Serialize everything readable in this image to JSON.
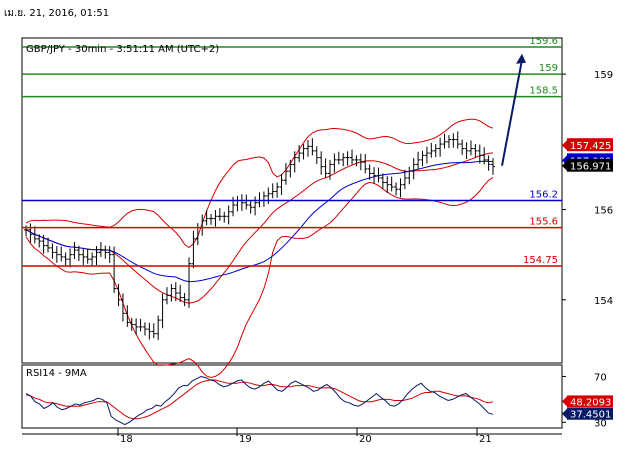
{
  "header": {
    "timestamp": "เม.ย. 21, 2016, 01:51",
    "title": "GBP/JPY - 30min - 3:51:11 AM (UTC+2)",
    "rsi_title": "RSI14 - 9MA"
  },
  "colors": {
    "green": "#1f8a1f",
    "blue": "#0000cc",
    "red": "#d40000",
    "navy": "#0a1a66",
    "black": "#000000"
  },
  "chart_data": [
    {
      "type": "candlestick",
      "pair": "GBP/JPY",
      "timeframe": "30min",
      "ylim": [
        152.6,
        159.8
      ],
      "yticks": [
        154,
        156,
        159
      ],
      "x_categories": [
        "18",
        "19",
        "20",
        "21"
      ],
      "levels": [
        {
          "label": "159.6",
          "value": 159.6,
          "color": "#1f8a1f"
        },
        {
          "label": "159",
          "value": 159.0,
          "color": "#1f8a1f"
        },
        {
          "label": "158.5",
          "value": 158.5,
          "color": "#1f8a1f"
        },
        {
          "label": "156.2",
          "value": 156.2,
          "color": "#0000cc"
        },
        {
          "label": "155.6",
          "value": 155.6,
          "color": "#d40000"
        },
        {
          "label": "154.75",
          "value": 154.75,
          "color": "#d40000"
        }
      ],
      "badges": [
        {
          "label": "157.425",
          "value": 157.425,
          "color": "#d40000"
        },
        {
          "label": "157.089",
          "value": 157.089,
          "color": "#0000cc"
        },
        {
          "label": "156.971",
          "value": 156.971,
          "color": "#000000"
        }
      ],
      "close_prices": [
        155.55,
        155.45,
        155.35,
        155.3,
        155.2,
        155.15,
        155.05,
        155.0,
        154.95,
        154.9,
        155.0,
        155.1,
        155.0,
        154.95,
        154.9,
        154.95,
        155.05,
        155.1,
        155.05,
        155.0,
        154.25,
        154.0,
        153.7,
        153.5,
        153.45,
        153.4,
        153.4,
        153.35,
        153.3,
        153.25,
        153.55,
        154.0,
        154.1,
        154.25,
        154.15,
        154.05,
        154.0,
        154.8,
        155.35,
        155.6,
        155.75,
        155.8,
        155.8,
        155.85,
        155.85,
        155.85,
        155.95,
        156.1,
        156.2,
        156.15,
        156.1,
        156.05,
        156.15,
        156.2,
        156.3,
        156.35,
        156.4,
        156.5,
        156.65,
        156.85,
        157.0,
        157.15,
        157.25,
        157.35,
        157.4,
        157.3,
        157.15,
        156.95,
        156.8,
        157.0,
        157.1,
        157.1,
        157.15,
        157.15,
        157.1,
        157.1,
        157.05,
        156.9,
        156.8,
        156.75,
        156.7,
        156.6,
        156.55,
        156.5,
        156.45,
        156.55,
        156.7,
        156.85,
        157.0,
        157.1,
        157.2,
        157.25,
        157.3,
        157.35,
        157.45,
        157.5,
        157.55,
        157.55,
        157.45,
        157.35,
        157.3,
        157.35,
        157.3,
        157.2,
        157.1,
        157.0,
        156.95
      ],
      "forecast_arrow": {
        "from": 156.971,
        "to": 159.45
      }
    },
    {
      "type": "line",
      "indicator": "RSI14 - 9MA",
      "ylim": [
        25,
        80
      ],
      "yticks": [
        70,
        30
      ],
      "series": [
        {
          "values": [
            55,
            53,
            48,
            46,
            42,
            44,
            47,
            43,
            41,
            42,
            44,
            46,
            45,
            47,
            48,
            49,
            51,
            50,
            47,
            35,
            32,
            30,
            28,
            30,
            33,
            36,
            38,
            41,
            42,
            45,
            44,
            48,
            51,
            55,
            60,
            62,
            62,
            66,
            68,
            70,
            69,
            67,
            66,
            63,
            61,
            62,
            64,
            66,
            67,
            63,
            60,
            59,
            61,
            64,
            66,
            62,
            58,
            57,
            60,
            64,
            66,
            64,
            62,
            60,
            57,
            58,
            61,
            63,
            60,
            56,
            51,
            48,
            47,
            45,
            44,
            46,
            49,
            52,
            55,
            52,
            49,
            45,
            44,
            46,
            50,
            55,
            59,
            62,
            64,
            60,
            57,
            56,
            53,
            51,
            49,
            50,
            52,
            54,
            55,
            52,
            49,
            46,
            42,
            38,
            37
          ]
        },
        {
          "values": [
            54,
            53,
            51,
            50,
            48,
            47,
            47,
            46,
            45,
            44,
            44,
            44,
            44,
            45,
            46,
            47,
            48,
            48,
            48,
            45,
            42,
            39,
            36,
            34,
            33,
            33,
            34,
            35,
            37,
            39,
            41,
            43,
            45,
            48,
            51,
            54,
            57,
            60,
            63,
            65,
            66,
            67,
            67,
            66,
            65,
            64,
            64,
            64,
            65,
            65,
            64,
            63,
            62,
            62,
            63,
            63,
            62,
            61,
            61,
            61,
            62,
            62,
            62,
            62,
            61,
            60,
            60,
            60,
            60,
            59,
            57,
            55,
            53,
            51,
            49,
            48,
            48,
            48,
            49,
            50,
            50,
            50,
            49,
            49,
            49,
            50,
            51,
            53,
            55,
            56,
            56,
            57,
            57,
            56,
            55,
            54,
            53,
            53,
            53,
            52,
            51,
            50,
            48,
            47,
            48
          ]
        }
      ],
      "badges": [
        {
          "label": "48.2093",
          "value": 48.2093,
          "color": "#d40000"
        },
        {
          "label": "37.4501",
          "value": 37.4501,
          "color": "#0a1a66"
        }
      ]
    }
  ]
}
